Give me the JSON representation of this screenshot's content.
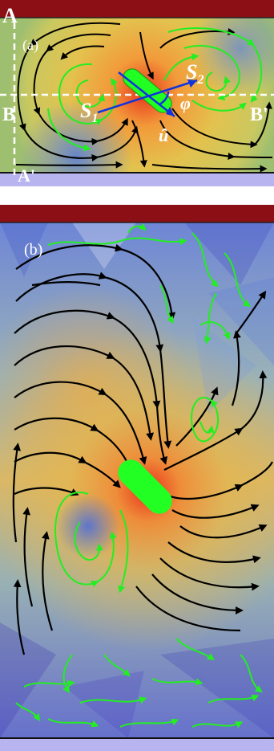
{
  "panel_a": {
    "label": "(a)",
    "corner_top": "A",
    "corner_bottom": "A'",
    "left_mid": "B",
    "right_mid": "B'",
    "s1_base": "S",
    "s1_sub": "1",
    "s2_base": "S",
    "s2_sub": "2",
    "phi": "φ",
    "u_hat": "û"
  },
  "panel_b": {
    "label": "(b)"
  },
  "colors": {
    "wall_top": "#8b0f14",
    "wall_bottom": "#b8b4f0",
    "black_stream": "#000000",
    "green_stream": "#22ee22",
    "particle": "#22ff22",
    "vector": "#1133dd",
    "dashed_guide": "#ffffff"
  }
}
